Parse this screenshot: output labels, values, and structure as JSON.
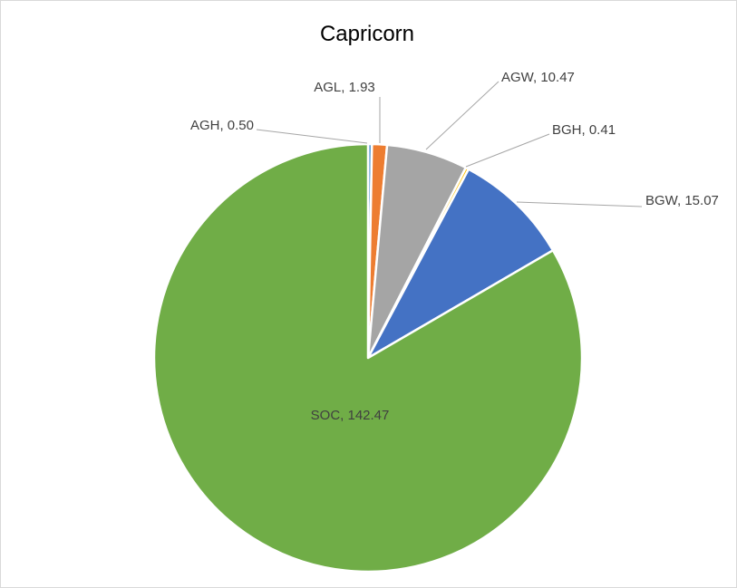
{
  "chart_data": {
    "type": "pie",
    "title": "Capricorn",
    "slices": [
      {
        "name": "AGH",
        "value": 0.5,
        "label": "AGH, 0.50",
        "color": "#5b9bd5"
      },
      {
        "name": "AGL",
        "value": 1.93,
        "label": "AGL, 1.93",
        "color": "#ed7d31"
      },
      {
        "name": "AGW",
        "value": 10.47,
        "label": "AGW, 10.47",
        "color": "#a5a5a5"
      },
      {
        "name": "BGH",
        "value": 0.41,
        "label": "BGH, 0.41",
        "color": "#ffc000"
      },
      {
        "name": "BGW",
        "value": 15.07,
        "label": "BGW, 15.07",
        "color": "#4472c4"
      },
      {
        "name": "SOC",
        "value": 142.47,
        "label": "SOC, 142.47",
        "color": "#70ad47"
      }
    ],
    "start_angle_deg": 0,
    "direction": "clockwise",
    "legend": "none",
    "data_labels": "category-and-value"
  }
}
